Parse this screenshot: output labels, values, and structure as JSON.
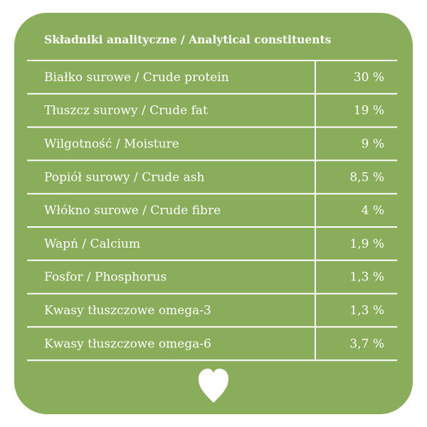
{
  "table": {
    "title": "Składniki analityczne / Analytical constituents",
    "rows": [
      [
        "Białko surowe / Crude protein",
        "30 %"
      ],
      [
        "Tłuszcz surowy / Crude fat",
        "19 %"
      ],
      [
        "Wilgotność / Moisture",
        "9 %"
      ],
      [
        "Popiół surowy / Crude ash",
        "8,5 %"
      ],
      [
        "Włókno surowe / Crude fibre",
        "4 %"
      ],
      [
        "Wapń / Calcium",
        "1,9 %"
      ],
      [
        "Fosfor / Phosphorus",
        "1,3 %"
      ],
      [
        "Kwasy tłuszczowe omega-3",
        "1,3 %"
      ],
      [
        "Kwasy tłuszczowe omega-6",
        "3,7 %"
      ]
    ]
  }
}
